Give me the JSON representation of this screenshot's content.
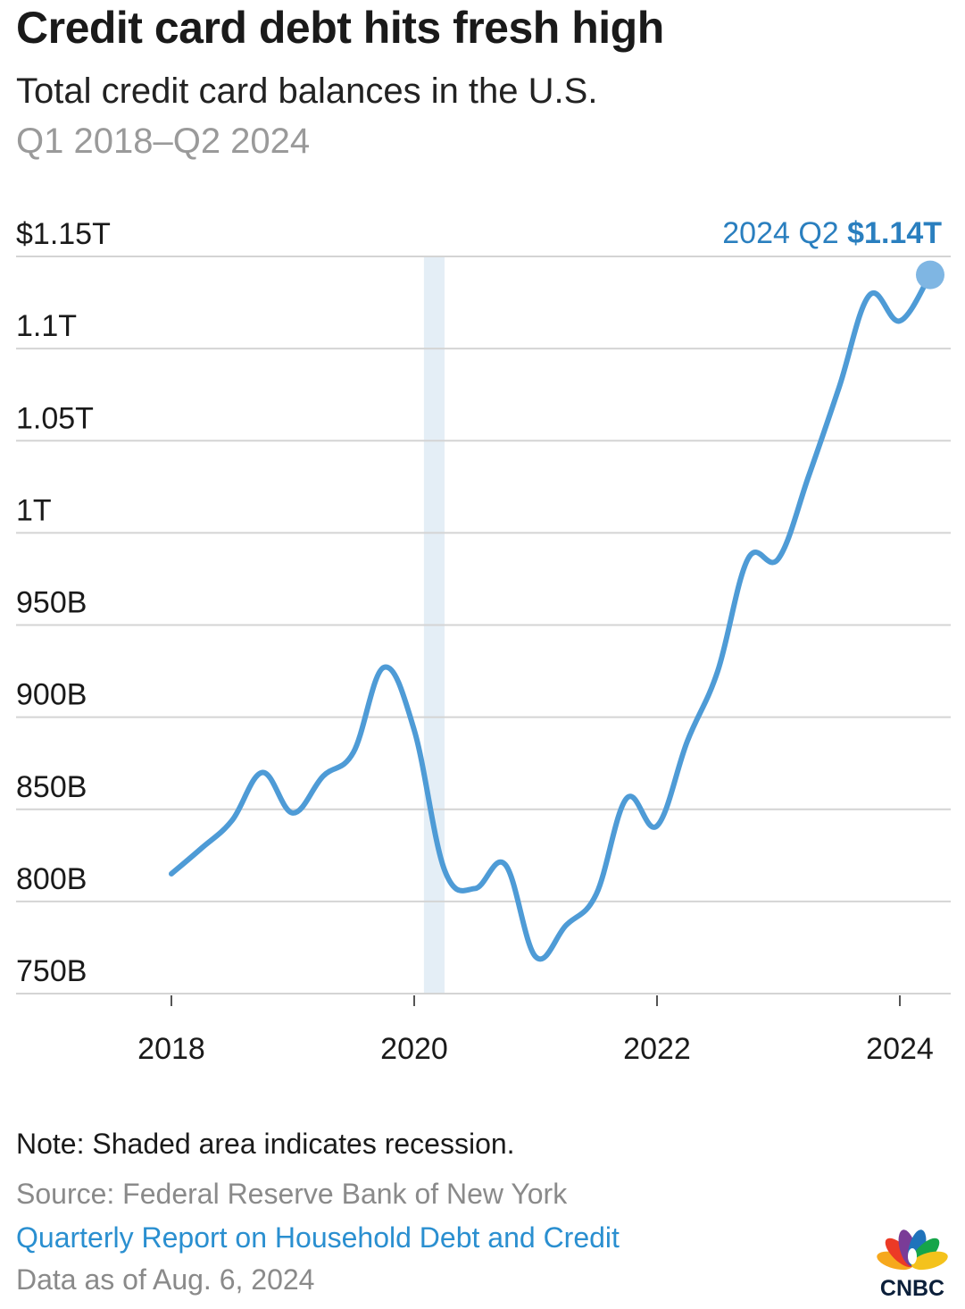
{
  "header": {
    "title": "Credit card debt hits fresh high",
    "subtitle": "Total credit card balances in the U.S.",
    "date_range": "Q1 2018–Q2 2024"
  },
  "footer": {
    "note": "Note: Shaded area indicates recession.",
    "source": "Source: Federal Reserve Bank of New York",
    "report_link": "Quarterly Report on Household Debt and Credit",
    "as_of": "Data as of Aug. 6, 2024"
  },
  "brand": {
    "logo_icon": "cnbc-peacock-icon",
    "logo_text": "CNBC"
  },
  "colors": {
    "line": "#4e9bd6",
    "endpoint": "#7fb6e3",
    "recession": "#e4eef6",
    "label": "#2a7fbf",
    "grid": "#d4d4d4"
  },
  "chart_data": {
    "type": "line",
    "title": "Credit card debt hits fresh high",
    "subtitle": "Total credit card balances in the U.S.",
    "xlabel": "",
    "ylabel": "",
    "x_unit": "year",
    "ylim": [
      750,
      1150
    ],
    "y_unit": "billions USD",
    "y_ticks": [
      {
        "value": 1150,
        "label": "$1.15T"
      },
      {
        "value": 1100,
        "label": "1.1T"
      },
      {
        "value": 1050,
        "label": "1.05T"
      },
      {
        "value": 1000,
        "label": "1T"
      },
      {
        "value": 950,
        "label": "950B"
      },
      {
        "value": 900,
        "label": "900B"
      },
      {
        "value": 850,
        "label": "850B"
      },
      {
        "value": 800,
        "label": "800B"
      },
      {
        "value": 750,
        "label": "750B"
      }
    ],
    "x_ticks": [
      {
        "value": 2018,
        "label": "2018"
      },
      {
        "value": 2020,
        "label": "2020"
      },
      {
        "value": 2022,
        "label": "2022"
      },
      {
        "value": 2024,
        "label": "2024"
      }
    ],
    "grid": true,
    "recession_band": [
      2020.08,
      2020.25
    ],
    "series": [
      {
        "points": [
          {
            "x": 2018.0,
            "q": "2018 Q1",
            "y": 815
          },
          {
            "x": 2018.25,
            "q": "2018 Q2",
            "y": 829
          },
          {
            "x": 2018.5,
            "q": "2018 Q3",
            "y": 844
          },
          {
            "x": 2018.75,
            "q": "2018 Q4",
            "y": 870
          },
          {
            "x": 2019.0,
            "q": "2019 Q1",
            "y": 848
          },
          {
            "x": 2019.25,
            "q": "2019 Q2",
            "y": 868
          },
          {
            "x": 2019.5,
            "q": "2019 Q3",
            "y": 881
          },
          {
            "x": 2019.75,
            "q": "2019 Q4",
            "y": 927
          },
          {
            "x": 2020.0,
            "q": "2020 Q1",
            "y": 893
          },
          {
            "x": 2020.25,
            "q": "2020 Q2",
            "y": 817
          },
          {
            "x": 2020.5,
            "q": "2020 Q3",
            "y": 807
          },
          {
            "x": 2020.75,
            "q": "2020 Q4",
            "y": 820
          },
          {
            "x": 2021.0,
            "q": "2021 Q1",
            "y": 770
          },
          {
            "x": 2021.25,
            "q": "2021 Q2",
            "y": 787
          },
          {
            "x": 2021.5,
            "q": "2021 Q3",
            "y": 804
          },
          {
            "x": 2021.75,
            "q": "2021 Q4",
            "y": 856
          },
          {
            "x": 2022.0,
            "q": "2022 Q1",
            "y": 841
          },
          {
            "x": 2022.25,
            "q": "2022 Q2",
            "y": 887
          },
          {
            "x": 2022.5,
            "q": "2022 Q3",
            "y": 925
          },
          {
            "x": 2022.75,
            "q": "2022 Q4",
            "y": 986
          },
          {
            "x": 2023.0,
            "q": "2023 Q1",
            "y": 986
          },
          {
            "x": 2023.25,
            "q": "2023 Q2",
            "y": 1031
          },
          {
            "x": 2023.5,
            "q": "2023 Q3",
            "y": 1079
          },
          {
            "x": 2023.75,
            "q": "2023 Q4",
            "y": 1129
          },
          {
            "x": 2024.0,
            "q": "2024 Q1",
            "y": 1115
          },
          {
            "x": 2024.25,
            "q": "2024 Q2",
            "y": 1140
          }
        ]
      }
    ],
    "annotation": {
      "prefix": "2024 Q2 ",
      "value_label": "$1.14T",
      "x": 2024.25,
      "y": 1140,
      "placement": "top-right"
    }
  }
}
